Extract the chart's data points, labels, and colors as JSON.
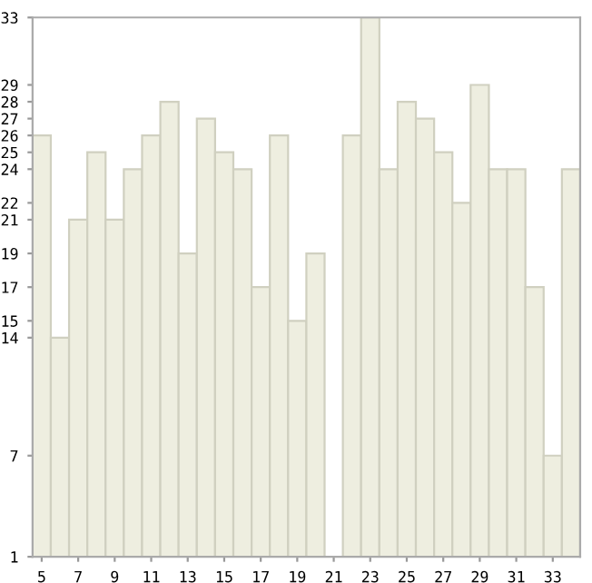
{
  "chart_data": {
    "type": "bar",
    "x": [
      5,
      6,
      7,
      8,
      9,
      10,
      11,
      12,
      13,
      14,
      15,
      16,
      17,
      18,
      19,
      20,
      21,
      22,
      23,
      24,
      25,
      26,
      27,
      28,
      29,
      30,
      31,
      32,
      33,
      34
    ],
    "values": [
      26,
      14,
      21,
      25,
      21,
      24,
      26,
      28,
      19,
      27,
      25,
      24,
      17,
      26,
      15,
      19,
      1,
      26,
      33,
      24,
      28,
      27,
      25,
      22,
      29,
      24,
      24,
      17,
      7,
      24
    ],
    "color": "#eeeee0",
    "xlim": [
      4.5,
      34.5
    ],
    "xticks": [
      5,
      7,
      9,
      11,
      13,
      15,
      17,
      19,
      21,
      23,
      25,
      27,
      29,
      31,
      33
    ],
    "ylim": [
      1,
      33
    ],
    "yticks": [
      1,
      7,
      14,
      15,
      17,
      19,
      21,
      22,
      24,
      25,
      26,
      27,
      28,
      29,
      33
    ],
    "grid": false
  }
}
